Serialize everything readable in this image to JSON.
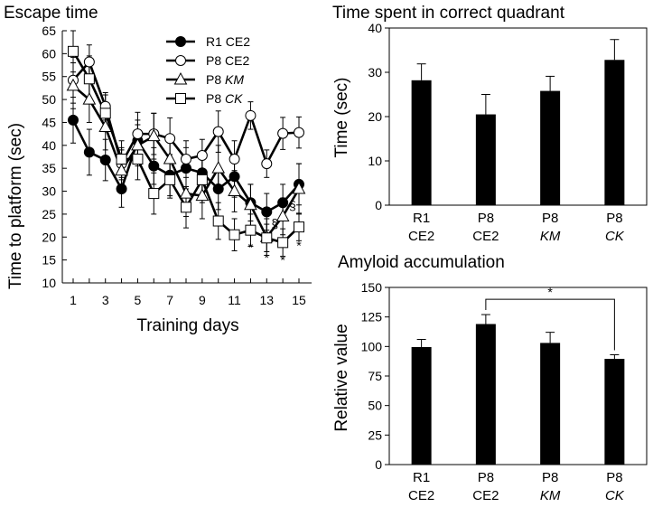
{
  "chart_data": [
    {
      "type": "line",
      "title": "Escape time",
      "xlabel": "Training days",
      "ylabel": "Time to platform (sec)",
      "xlim": [
        1,
        15
      ],
      "ylim": [
        10,
        65
      ],
      "xticks": [
        1,
        3,
        5,
        7,
        9,
        11,
        13,
        15
      ],
      "xtick_labels": [
        "1",
        "3",
        "5",
        "7",
        "9",
        "11",
        "13",
        "15"
      ],
      "yticks": [
        10,
        15,
        20,
        25,
        30,
        35,
        40,
        45,
        50,
        55,
        60,
        65
      ],
      "ytick_labels": [
        "10",
        "15",
        "20",
        "25",
        "30",
        "35",
        "40",
        "45",
        "50",
        "55",
        "60",
        "65"
      ],
      "x": [
        1,
        2,
        3,
        4,
        5,
        6,
        7,
        8,
        9,
        10,
        11,
        12,
        13,
        14,
        15
      ],
      "series": [
        {
          "name": "R1 CE2",
          "label_prefix": "R1 ",
          "label_strain": "CE2",
          "strain_italic": false,
          "marker": "circle",
          "fill": "#000000",
          "values": [
            45.5,
            38.5,
            36.8,
            30.5,
            41.0,
            35.5,
            33.5,
            35.0,
            34.0,
            30.5,
            33.2,
            27.5,
            25.5,
            27.5,
            31.5
          ],
          "errors": [
            5.0,
            5.0,
            4.5,
            4.0,
            4.5,
            4.0,
            4.5,
            4.5,
            4.5,
            4.5,
            4.5,
            4.0,
            4.0,
            4.0,
            4.5
          ]
        },
        {
          "name": "P8 CE2",
          "label_prefix": "P8 ",
          "label_strain": "CE2",
          "strain_italic": false,
          "marker": "circle",
          "fill": "#ffffff",
          "values": [
            54.2,
            58.2,
            48.5,
            36.0,
            42.5,
            42.5,
            41.5,
            37.0,
            37.8,
            43.0,
            37.0,
            46.5,
            36.0,
            42.6,
            42.8
          ],
          "errors": [
            5.0,
            3.7,
            3.0,
            3.5,
            4.7,
            4.5,
            4.5,
            4.0,
            3.5,
            4.5,
            4.0,
            3.0,
            3.0,
            3.5,
            3.4
          ]
        },
        {
          "name": "P8 KM",
          "label_prefix": "P8 ",
          "label_strain": "KM",
          "strain_italic": true,
          "marker": "triangle",
          "fill": "#ffffff",
          "values": [
            53.0,
            50.0,
            44.0,
            34.5,
            40.0,
            42.0,
            37.0,
            29.5,
            29.0,
            35.0,
            30.0,
            27.0,
            20.0,
            24.5,
            30.5
          ],
          "errors": [
            5.0,
            5.0,
            5.0,
            4.5,
            4.5,
            5.0,
            5.0,
            5.0,
            5.0,
            5.0,
            4.5,
            4.5,
            4.0,
            4.0,
            5.5
          ]
        },
        {
          "name": "P8 CK",
          "label_prefix": "P8 ",
          "label_strain": "CK",
          "strain_italic": true,
          "marker": "square",
          "fill": "#ffffff",
          "values": [
            60.5,
            54.5,
            47.0,
            37.0,
            37.0,
            29.5,
            32.5,
            26.5,
            32.5,
            23.5,
            20.5,
            21.5,
            19.8,
            18.8,
            22.2
          ],
          "errors": [
            4.5,
            5.0,
            4.0,
            4.0,
            4.5,
            4.5,
            4.0,
            4.5,
            5.0,
            4.0,
            3.5,
            3.5,
            3.0,
            3.0,
            3.0
          ]
        }
      ],
      "annotations": [
        {
          "text": "*",
          "x": 12,
          "y": 16.8
        },
        {
          "text": "*",
          "x": 13,
          "y": 14.5
        },
        {
          "text": "*",
          "x": 14,
          "y": 14.0
        },
        {
          "text": "*",
          "x": 15,
          "y": 17.2
        },
        {
          "text": "§",
          "x": 13.5,
          "y": 22.0
        },
        {
          "text": "§",
          "x": 14.6,
          "y": 26.0
        }
      ],
      "legend_position": "top-center"
    },
    {
      "type": "bar",
      "title": "Time spent in correct quadrant",
      "ylabel": "Time  (sec)",
      "ylim": [
        0,
        40
      ],
      "yticks": [
        0,
        10,
        20,
        30,
        40
      ],
      "ytick_labels": [
        "0",
        "10",
        "20",
        "30",
        "40"
      ],
      "categories": [
        {
          "line1": "R1",
          "line2": "CE2",
          "italic": false
        },
        {
          "line1": "P8",
          "line2": "CE2",
          "italic": false
        },
        {
          "line1": "P8",
          "line2": "KM",
          "italic": true
        },
        {
          "line1": "P8",
          "line2": "CK",
          "italic": true
        }
      ],
      "values": [
        28.2,
        20.5,
        25.8,
        32.8
      ],
      "errors": [
        3.7,
        4.5,
        3.3,
        4.6
      ]
    },
    {
      "type": "bar",
      "title": "Amyloid accumulation",
      "ylabel": "Relative value",
      "ylim": [
        0,
        150
      ],
      "yticks": [
        0,
        25,
        50,
        75,
        100,
        125,
        150
      ],
      "ytick_labels": [
        "0",
        "25",
        "50",
        "75",
        "100",
        "125",
        "150"
      ],
      "categories": [
        {
          "line1": "R1",
          "line2": "CE2",
          "italic": false
        },
        {
          "line1": "P8",
          "line2": "CE2",
          "italic": false
        },
        {
          "line1": "P8",
          "line2": "KM",
          "italic": true
        },
        {
          "line1": "P8",
          "line2": "CK",
          "italic": true
        }
      ],
      "values": [
        99.5,
        119.0,
        103.0,
        89.5
      ],
      "errors": [
        6.5,
        8.0,
        9.0,
        3.5
      ],
      "significance": {
        "from": 1,
        "to": 3,
        "text": "*",
        "y": 140
      }
    }
  ]
}
